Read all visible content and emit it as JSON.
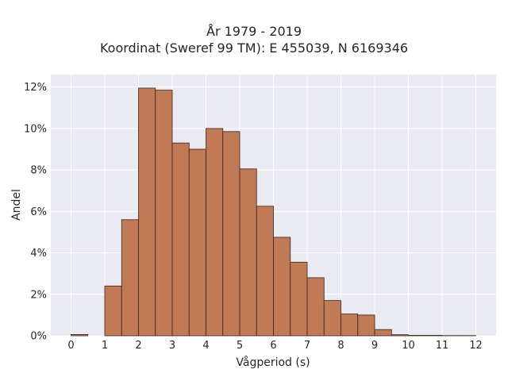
{
  "chart_data": {
    "type": "bar",
    "title": "År 1979 - 2019",
    "subtitle": "Koordinat (Sweref 99 TM): E 455039, N 6169346",
    "xlabel": "Vågperiod (s)",
    "ylabel": "Andel",
    "xlim": [
      -0.6,
      12.6
    ],
    "ylim": [
      0,
      12.6
    ],
    "x_ticks": [
      "0",
      "1",
      "2",
      "3",
      "4",
      "5",
      "6",
      "7",
      "8",
      "9",
      "10",
      "11",
      "12"
    ],
    "y_ticks": [
      "0%",
      "2%",
      "4%",
      "6%",
      "8%",
      "10%",
      "12%"
    ],
    "grid": true,
    "bin_width": 0.5,
    "bins": [
      {
        "x0": 0.0,
        "value": 0.06
      },
      {
        "x0": 0.5,
        "value": 0.0
      },
      {
        "x0": 1.0,
        "value": 2.4
      },
      {
        "x0": 1.5,
        "value": 5.6
      },
      {
        "x0": 2.0,
        "value": 11.95
      },
      {
        "x0": 2.5,
        "value": 11.85
      },
      {
        "x0": 3.0,
        "value": 9.3
      },
      {
        "x0": 3.5,
        "value": 9.0
      },
      {
        "x0": 4.0,
        "value": 10.0
      },
      {
        "x0": 4.5,
        "value": 9.85
      },
      {
        "x0": 5.0,
        "value": 8.05
      },
      {
        "x0": 5.5,
        "value": 6.25
      },
      {
        "x0": 6.0,
        "value": 4.75
      },
      {
        "x0": 6.5,
        "value": 3.55
      },
      {
        "x0": 7.0,
        "value": 2.8
      },
      {
        "x0": 7.5,
        "value": 1.7
      },
      {
        "x0": 8.0,
        "value": 1.05
      },
      {
        "x0": 8.5,
        "value": 1.0
      },
      {
        "x0": 9.0,
        "value": 0.3
      },
      {
        "x0": 9.5,
        "value": 0.05
      },
      {
        "x0": 10.0,
        "value": 0.02
      },
      {
        "x0": 10.5,
        "value": 0.02
      },
      {
        "x0": 11.0,
        "value": 0.01
      },
      {
        "x0": 11.5,
        "value": 0.01
      }
    ],
    "colors": {
      "bar_fill": "#c17a56",
      "bar_edge": "#3b2418",
      "plot_bg": "#eaeaf2",
      "grid": "#ffffff"
    }
  }
}
